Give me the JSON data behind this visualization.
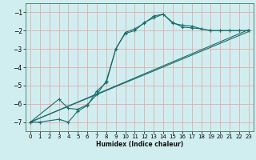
{
  "xlabel": "Humidex (Indice chaleur)",
  "bg_color": "#d0eef0",
  "line_color": "#1a6e6a",
  "grid_color": "#e8a0a0",
  "xlim": [
    -0.5,
    23.5
  ],
  "ylim": [
    -7.5,
    -0.5
  ],
  "yticks": [
    -7,
    -6,
    -5,
    -4,
    -3,
    -2,
    -1
  ],
  "xticks": [
    0,
    1,
    2,
    3,
    4,
    5,
    6,
    7,
    8,
    9,
    10,
    11,
    12,
    13,
    14,
    15,
    16,
    17,
    18,
    19,
    20,
    21,
    22,
    23
  ],
  "line1_x": [
    0,
    1,
    3,
    4,
    5,
    6,
    7,
    8,
    9,
    10,
    11,
    12,
    13,
    14,
    15,
    16,
    17,
    18,
    19,
    20,
    21,
    22,
    23
  ],
  "line1_y": [
    -7,
    -7,
    -6.85,
    -7,
    -6.4,
    -6.1,
    -5.3,
    -4.85,
    -3.0,
    -2.1,
    -1.9,
    -1.6,
    -1.2,
    -1.1,
    -1.55,
    -1.8,
    -1.85,
    -1.9,
    -2.0,
    -2.0,
    -2.0,
    -2.0,
    -2.0
  ],
  "line2_x": [
    0,
    3,
    4,
    5,
    6,
    7,
    8,
    9,
    10,
    11,
    12,
    13,
    14,
    15,
    16,
    17,
    18,
    19,
    20,
    21,
    22,
    23
  ],
  "line2_y": [
    -7,
    -5.75,
    -6.25,
    -6.3,
    -6.05,
    -5.5,
    -4.75,
    -3.0,
    -2.15,
    -2.0,
    -1.55,
    -1.3,
    -1.1,
    -1.6,
    -1.7,
    -1.75,
    -1.9,
    -2.0,
    -2.0,
    -2.0,
    -2.0,
    -2.0
  ],
  "line3_x": [
    0,
    23
  ],
  "line3_y": [
    -7,
    -1.95
  ],
  "line4_x": [
    0,
    23
  ],
  "line4_y": [
    -7,
    -2.05
  ]
}
